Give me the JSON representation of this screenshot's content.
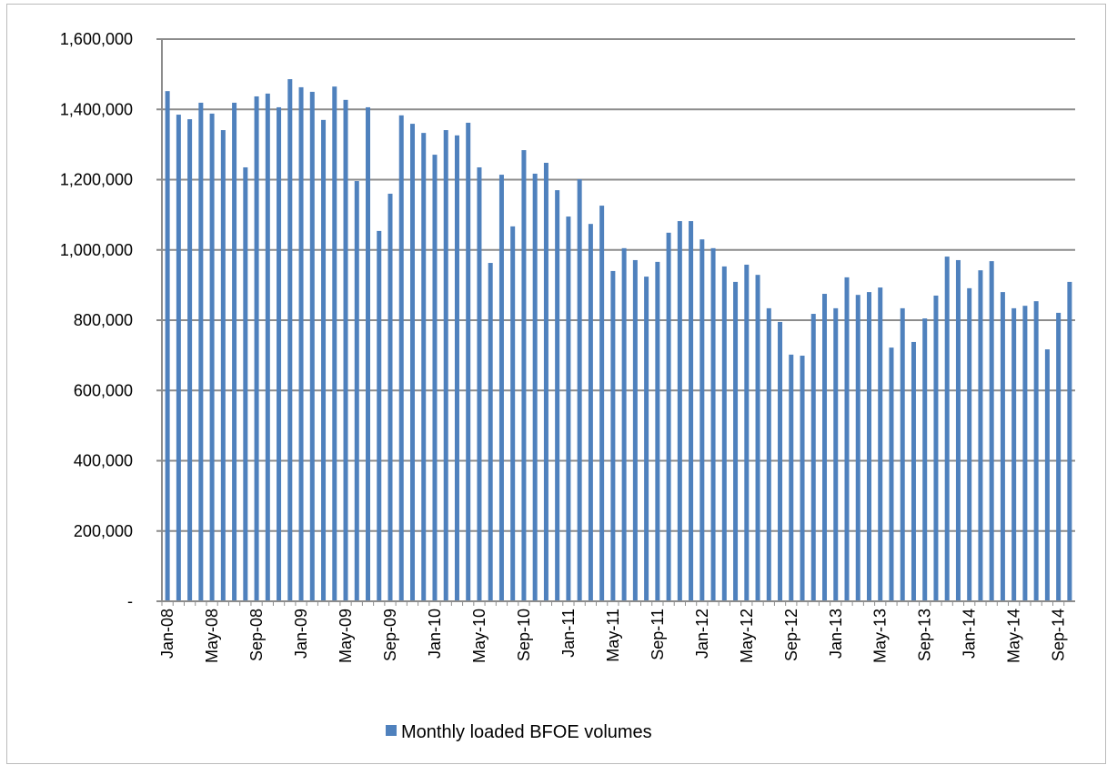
{
  "chart_data": {
    "type": "bar",
    "categories": [
      "Jan-08",
      null,
      null,
      null,
      "May-08",
      null,
      null,
      null,
      "Sep-08",
      null,
      null,
      null,
      "Jan-09",
      null,
      null,
      null,
      "May-09",
      null,
      null,
      null,
      "Sep-09",
      null,
      null,
      null,
      "Jan-10",
      null,
      null,
      null,
      "May-10",
      null,
      null,
      null,
      "Sep-10",
      null,
      null,
      null,
      "Jan-11",
      null,
      null,
      null,
      "May-11",
      null,
      null,
      null,
      "Sep-11",
      null,
      null,
      null,
      "Jan-12",
      null,
      null,
      null,
      "May-12",
      null,
      null,
      null,
      "Sep-12",
      null,
      null,
      null,
      "Jan-13",
      null,
      null,
      null,
      "May-13",
      null,
      null,
      null,
      "Sep-13",
      null,
      null,
      null,
      "Jan-14",
      null,
      null,
      null,
      "May-14",
      null,
      null,
      null,
      "Sep-14",
      null
    ],
    "series": [
      {
        "name": "Monthly loaded BFOE volumes",
        "color": "#4f81bd",
        "values": [
          1452000,
          1385000,
          1372000,
          1419000,
          1388000,
          1341000,
          1419000,
          1235000,
          1437000,
          1445000,
          1406000,
          1486000,
          1463000,
          1450000,
          1370000,
          1465000,
          1427000,
          1196000,
          1406000,
          1054000,
          1160000,
          1383000,
          1359000,
          1333000,
          1271000,
          1341000,
          1326000,
          1362000,
          1235000,
          963000,
          1214000,
          1067000,
          1284000,
          1217000,
          1248000,
          1170000,
          1095000,
          1201000,
          1074000,
          1126000,
          940000,
          1005000,
          971000,
          924000,
          966000,
          1049000,
          1082000,
          1082000,
          1030000,
          1005000,
          953000,
          909000,
          958000,
          929000,
          834000,
          795000,
          702000,
          699000,
          818000,
          875000,
          834000,
          922000,
          872000,
          880000,
          893000,
          722000,
          834000,
          738000,
          805000,
          870000,
          981000,
          971000,
          891000,
          942000,
          968000,
          880000,
          834000,
          841000,
          854000,
          717000,
          821000,
          909000
        ]
      }
    ],
    "ylim": [
      0,
      1600000
    ],
    "yticks": [
      {
        "value": 0,
        "label": "-"
      },
      {
        "value": 200000,
        "label": "200,000"
      },
      {
        "value": 400000,
        "label": "400,000"
      },
      {
        "value": 600000,
        "label": "600,000"
      },
      {
        "value": 800000,
        "label": "800,000"
      },
      {
        "value": 1000000,
        "label": "1,000,000"
      },
      {
        "value": 1200000,
        "label": "1,200,000"
      },
      {
        "value": 1400000,
        "label": "1,400,000"
      },
      {
        "value": 1600000,
        "label": "1,600,000"
      }
    ],
    "grid": true,
    "legend": "bottom"
  }
}
